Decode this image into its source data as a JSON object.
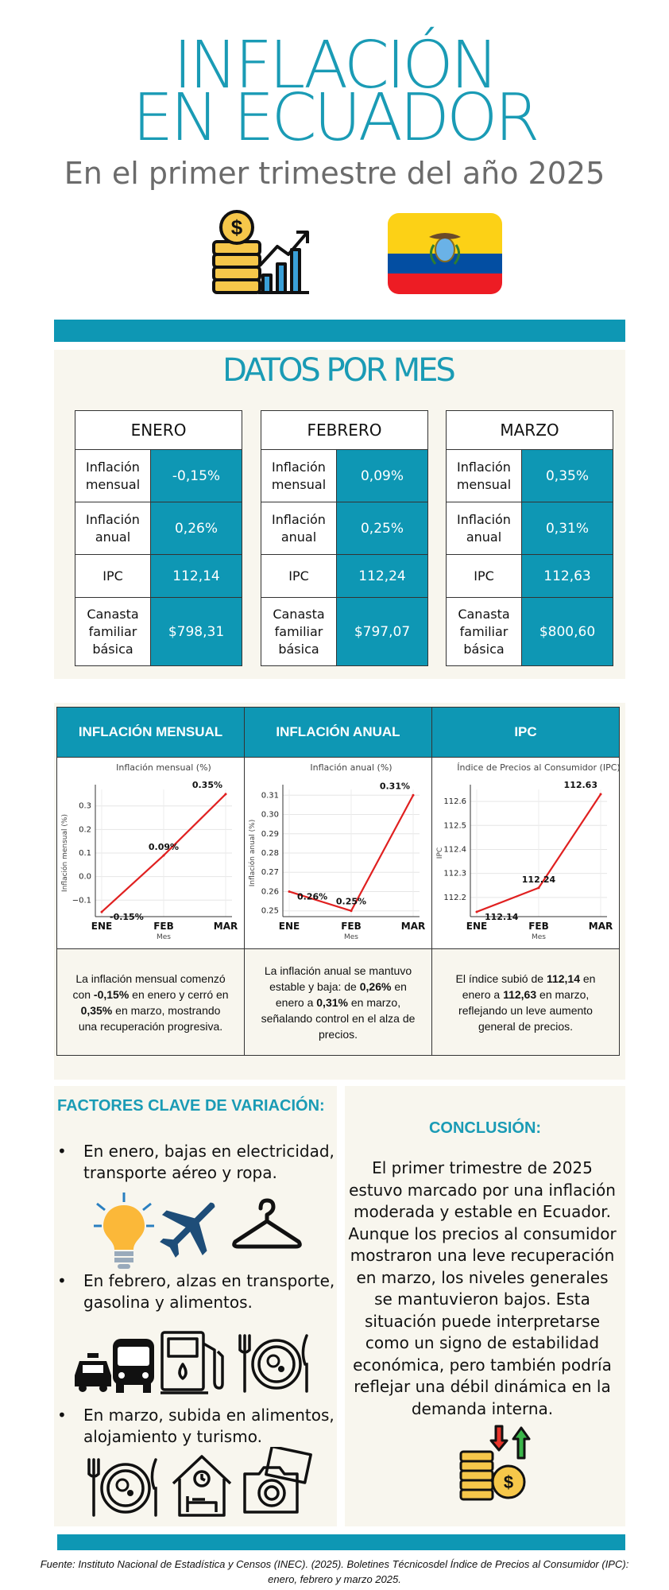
{
  "title": {
    "line1": "INFLACIÓN",
    "line2": "EN ECUADOR"
  },
  "subtitle": "En el primer trimestre del año 2025",
  "icons": {
    "money_growth": "coin-stack-growth-chart-icon",
    "flag": "ecuador-flag-icon"
  },
  "colors": {
    "accent": "#0e97b4",
    "title": "#1a9bb5",
    "cream": "#f8f6ee",
    "line": "#e02020"
  },
  "datos": {
    "title": "DATOS POR MES",
    "row_labels": {
      "inflacion_mensual": "Inflación mensual",
      "inflacion_anual": "Inflación anual",
      "ipc": "IPC",
      "canasta": "Canasta familiar básica"
    },
    "months": [
      {
        "name": "ENERO",
        "mensual": "-0,15%",
        "anual": "0,26%",
        "ipc": "112,14",
        "canasta": "$798,31"
      },
      {
        "name": "FEBRERO",
        "mensual": "0,09%",
        "anual": "0,25%",
        "ipc": "112,24",
        "canasta": "$797,07"
      },
      {
        "name": "MARZO",
        "mensual": "0,35%",
        "anual": "0,31%",
        "ipc": "112,63",
        "canasta": "$800,60"
      }
    ]
  },
  "charts_table": {
    "headers": [
      "INFLACIÓN MENSUAL",
      "INFLACIÓN ANUAL",
      "IPC"
    ],
    "descriptions": [
      {
        "pre": "La inflación mensual comenzó con ",
        "b1": "-0,15%",
        "mid": " en enero y cerró en ",
        "b2": "0,35%",
        "post": " en marzo, mostrando una recuperación progresiva."
      },
      {
        "pre": "La inflación anual se mantuvo estable y baja: de ",
        "b1": "0,26%",
        "mid": " en enero a ",
        "b2": "0,31%",
        "post": " en marzo, señalando control en el alza de precios."
      },
      {
        "pre": "El índice subió de ",
        "b1": "112,14",
        "mid": " en enero a ",
        "b2": "112,63",
        "post": " en marzo, reflejando un leve aumento general de precios."
      }
    ]
  },
  "chart_data": [
    {
      "type": "line",
      "title": "Inflación mensual (%)",
      "xlabel": "Mes",
      "ylabel": "Inflación mensual (%)",
      "categories": [
        "ENE",
        "FEB",
        "MAR"
      ],
      "values": [
        -0.15,
        0.09,
        0.35
      ],
      "data_labels": [
        "-0.15%",
        "0.09%",
        "0.35%"
      ],
      "yticks": [
        -0.1,
        0.0,
        0.1,
        0.2,
        0.3
      ],
      "ytick_labels": [
        "−0.1",
        "0.0",
        "0.1",
        "0.2",
        "0.3"
      ],
      "ylim": [
        -0.17,
        0.37
      ],
      "grid": true
    },
    {
      "type": "line",
      "title": "Inflación anual (%)",
      "xlabel": "Mes",
      "ylabel": "Inflación anual (%)",
      "categories": [
        "ENE",
        "FEB",
        "MAR"
      ],
      "values": [
        0.26,
        0.25,
        0.31
      ],
      "data_labels": [
        "0.26%",
        "0.25%",
        "0.31%"
      ],
      "yticks": [
        0.25,
        0.26,
        0.27,
        0.28,
        0.29,
        0.3,
        0.31
      ],
      "ytick_labels": [
        "0.25",
        "0.26",
        "0.27",
        "0.28",
        "0.29",
        "0.30",
        "0.31"
      ],
      "ylim": [
        0.247,
        0.313
      ],
      "grid": true
    },
    {
      "type": "line",
      "title": "Índice de Precios al Consumidor (IPC)",
      "xlabel": "Mes",
      "ylabel": "IPC",
      "categories": [
        "ENE",
        "FEB",
        "MAR"
      ],
      "values": [
        112.14,
        112.24,
        112.63
      ],
      "data_labels": [
        "112.14",
        "112.24",
        "112.63"
      ],
      "yticks": [
        112.2,
        112.3,
        112.4,
        112.5,
        112.6
      ],
      "ytick_labels": [
        "112.2",
        "112.3",
        "112.4",
        "112.5",
        "112.6"
      ],
      "ylim": [
        112.12,
        112.65
      ],
      "grid": true
    }
  ],
  "factores": {
    "title": "FACTORES CLAVE DE VARIACIÓN:",
    "bullet_char": "•",
    "items": [
      {
        "text": "En enero, bajas en electricidad, transporte aéreo y ropa.",
        "icons": [
          "lightbulb-icon",
          "airplane-icon",
          "hanger-icon"
        ]
      },
      {
        "text": "En febrero, alzas en transporte, gasolina y alimentos.",
        "icons": [
          "taxi-icon",
          "bus-icon",
          "gas-pump-icon",
          "food-plate-icon"
        ]
      },
      {
        "text": "En marzo, subida en alimentos, alojamiento y turismo.",
        "icons": [
          "food-plate-icon",
          "house-icon",
          "camera-icon"
        ]
      }
    ]
  },
  "conclusion": {
    "title": "CONCLUSIÓN:",
    "text": "El primer trimestre de 2025 estuvo marcado por una inflación moderada y estable en Ecuador. Aunque los precios al consumidor mostraron una leve recuperación en marzo, los niveles generales se mantuvieron bajos. Esta situación puede interpretarse como un signo de estabilidad económica, pero también podría reflejar una débil dinámica en la demanda interna.",
    "icon": "coins-up-down-arrows-icon"
  },
  "footer": {
    "line1": "Fuente: Instituto Nacional de Estadística y Censos (INEC). (2025). Boletines Técnicosdel Índice de Precios al Consumidor (IPC):",
    "line2": "enero, febrero y marzo 2025."
  }
}
